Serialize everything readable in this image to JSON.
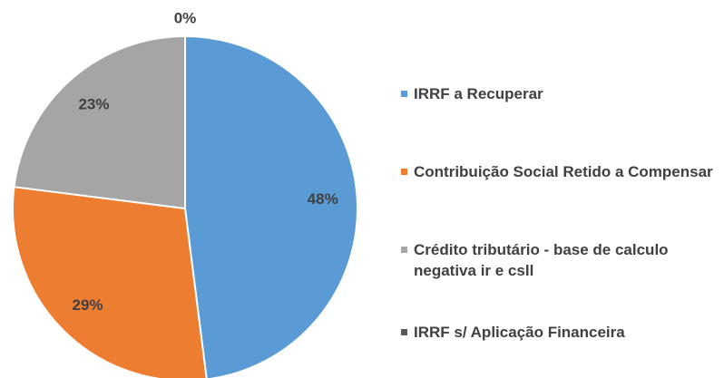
{
  "chart_data": {
    "type": "pie",
    "categories": [
      "IRRF a Recuperar",
      "Contribuição Social Retido a Compensar",
      "Crédito tributário - base de calculo negativa ir e csll",
      "IRRF s/ Aplicação Financeira"
    ],
    "values": [
      48,
      29,
      23,
      0
    ],
    "value_labels": [
      "48%",
      "29%",
      "23%",
      "0%"
    ],
    "colors": [
      "#5b9bd5",
      "#ed7d31",
      "#a5a5a5",
      "#595959"
    ]
  }
}
